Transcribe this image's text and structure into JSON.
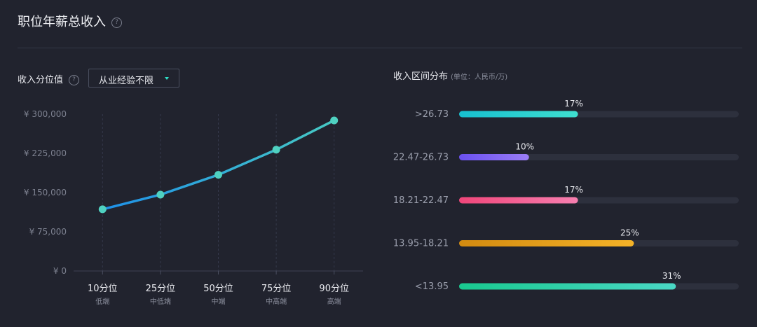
{
  "header": {
    "title": "职位年薪总收入",
    "help_glyph": "?"
  },
  "left": {
    "label": "收入分位值",
    "help_glyph": "?",
    "dropdown_value": "从业经验不限"
  },
  "right": {
    "title": "收入区间分布",
    "unit": "(单位：人民币/万)"
  },
  "chart_data": [
    {
      "type": "line",
      "categories": [
        "10分位",
        "25分位",
        "50分位",
        "75分位",
        "90分位"
      ],
      "sub_labels": [
        "低端",
        "中低端",
        "中端",
        "中高端",
        "高端"
      ],
      "values": [
        118000,
        146000,
        184000,
        232000,
        288000
      ],
      "y_ticks": [
        "¥ 300,000",
        "¥ 225,000",
        "¥ 150,000",
        "¥ 75,000",
        "¥ 0"
      ],
      "ylim": [
        0,
        300000
      ],
      "grid": "vertical dashed",
      "line_color_start": "#1e90e8",
      "line_color_end": "#47c9c4",
      "point_color": "#4fd1c1"
    },
    {
      "type": "bar",
      "orientation": "horizontal",
      "categories": [
        ">26.73",
        "22.47-26.73",
        "18.21-22.47",
        "13.95-18.21",
        "<13.95"
      ],
      "values": [
        17,
        10,
        17,
        25,
        31
      ],
      "value_labels": [
        "17%",
        "10%",
        "17%",
        "25%",
        "31%"
      ],
      "max": 40,
      "colors": [
        [
          "#17c0d0",
          "#3fdfcf"
        ],
        [
          "#6a50f0",
          "#9a7df5"
        ],
        [
          "#f0467a",
          "#f77fb0"
        ],
        [
          "#d28a10",
          "#f5b328"
        ],
        [
          "#19c98f",
          "#4ad8c5"
        ]
      ],
      "track_color": "#2d303d"
    }
  ]
}
